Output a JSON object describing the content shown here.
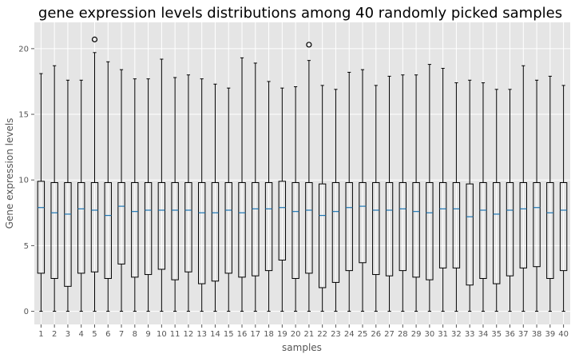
{
  "chart_data": {
    "type": "boxplot",
    "title": "gene expression levels distributions among 40 randomly picked samples",
    "xlabel": "samples",
    "ylabel": "Gene expression levels",
    "ylim": [
      -1,
      22
    ],
    "yticks": [
      0,
      5,
      10,
      15,
      20
    ],
    "grid": true,
    "colors": {
      "background": "#e5e5e5",
      "grid": "#ffffff",
      "box": "#000000",
      "median": "#1f77b4",
      "tick_text": "#555555"
    },
    "categories": [
      "1",
      "2",
      "3",
      "4",
      "5",
      "6",
      "7",
      "8",
      "9",
      "10",
      "11",
      "12",
      "13",
      "14",
      "15",
      "16",
      "17",
      "18",
      "19",
      "20",
      "21",
      "22",
      "23",
      "24",
      "25",
      "26",
      "27",
      "28",
      "29",
      "30",
      "31",
      "32",
      "33",
      "34",
      "35",
      "36",
      "37",
      "38",
      "39",
      "40"
    ],
    "boxes": [
      {
        "min": 0,
        "q1": 2.9,
        "median": 7.9,
        "q3": 9.9,
        "max": 18.1,
        "outliers": []
      },
      {
        "min": 0,
        "q1": 2.5,
        "median": 7.5,
        "q3": 9.8,
        "max": 18.7,
        "outliers": []
      },
      {
        "min": 0,
        "q1": 1.9,
        "median": 7.4,
        "q3": 9.8,
        "max": 17.6,
        "outliers": []
      },
      {
        "min": 0,
        "q1": 2.9,
        "median": 7.8,
        "q3": 9.8,
        "max": 17.6,
        "outliers": []
      },
      {
        "min": 0,
        "q1": 3.0,
        "median": 7.7,
        "q3": 9.8,
        "max": 19.7,
        "outliers": [
          20.7
        ]
      },
      {
        "min": 0,
        "q1": 2.5,
        "median": 7.3,
        "q3": 9.8,
        "max": 19.0,
        "outliers": []
      },
      {
        "min": 0,
        "q1": 3.6,
        "median": 8.0,
        "q3": 9.8,
        "max": 18.4,
        "outliers": []
      },
      {
        "min": 0,
        "q1": 2.6,
        "median": 7.6,
        "q3": 9.8,
        "max": 17.7,
        "outliers": []
      },
      {
        "min": 0,
        "q1": 2.8,
        "median": 7.7,
        "q3": 9.8,
        "max": 17.7,
        "outliers": []
      },
      {
        "min": 0,
        "q1": 3.2,
        "median": 7.7,
        "q3": 9.8,
        "max": 19.2,
        "outliers": []
      },
      {
        "min": 0,
        "q1": 2.4,
        "median": 7.7,
        "q3": 9.8,
        "max": 17.8,
        "outliers": []
      },
      {
        "min": 0,
        "q1": 3.0,
        "median": 7.7,
        "q3": 9.8,
        "max": 18.0,
        "outliers": []
      },
      {
        "min": 0,
        "q1": 2.1,
        "median": 7.5,
        "q3": 9.8,
        "max": 17.7,
        "outliers": []
      },
      {
        "min": 0,
        "q1": 2.3,
        "median": 7.5,
        "q3": 9.8,
        "max": 17.3,
        "outliers": []
      },
      {
        "min": 0,
        "q1": 2.9,
        "median": 7.7,
        "q3": 9.8,
        "max": 17.0,
        "outliers": []
      },
      {
        "min": 0,
        "q1": 2.6,
        "median": 7.5,
        "q3": 9.8,
        "max": 19.3,
        "outliers": []
      },
      {
        "min": 0,
        "q1": 2.7,
        "median": 7.8,
        "q3": 9.8,
        "max": 18.9,
        "outliers": []
      },
      {
        "min": 0,
        "q1": 3.1,
        "median": 7.8,
        "q3": 9.8,
        "max": 17.5,
        "outliers": []
      },
      {
        "min": 0,
        "q1": 3.9,
        "median": 7.9,
        "q3": 9.9,
        "max": 17.0,
        "outliers": []
      },
      {
        "min": 0,
        "q1": 2.5,
        "median": 7.6,
        "q3": 9.8,
        "max": 17.1,
        "outliers": []
      },
      {
        "min": 0,
        "q1": 2.9,
        "median": 7.7,
        "q3": 9.8,
        "max": 19.1,
        "outliers": [
          20.3
        ]
      },
      {
        "min": 0,
        "q1": 1.8,
        "median": 7.3,
        "q3": 9.7,
        "max": 17.2,
        "outliers": []
      },
      {
        "min": 0,
        "q1": 2.2,
        "median": 7.6,
        "q3": 9.8,
        "max": 16.9,
        "outliers": []
      },
      {
        "min": 0,
        "q1": 3.1,
        "median": 7.9,
        "q3": 9.8,
        "max": 18.2,
        "outliers": []
      },
      {
        "min": 0,
        "q1": 3.7,
        "median": 8.0,
        "q3": 9.8,
        "max": 18.4,
        "outliers": []
      },
      {
        "min": 0,
        "q1": 2.8,
        "median": 7.7,
        "q3": 9.8,
        "max": 17.2,
        "outliers": []
      },
      {
        "min": 0,
        "q1": 2.7,
        "median": 7.7,
        "q3": 9.8,
        "max": 17.9,
        "outliers": []
      },
      {
        "min": 0,
        "q1": 3.1,
        "median": 7.8,
        "q3": 9.8,
        "max": 18.0,
        "outliers": []
      },
      {
        "min": 0,
        "q1": 2.6,
        "median": 7.6,
        "q3": 9.8,
        "max": 18.0,
        "outliers": []
      },
      {
        "min": 0,
        "q1": 2.4,
        "median": 7.5,
        "q3": 9.8,
        "max": 18.8,
        "outliers": []
      },
      {
        "min": 0,
        "q1": 3.3,
        "median": 7.8,
        "q3": 9.8,
        "max": 18.5,
        "outliers": []
      },
      {
        "min": 0,
        "q1": 3.3,
        "median": 7.8,
        "q3": 9.8,
        "max": 17.4,
        "outliers": []
      },
      {
        "min": 0,
        "q1": 2.0,
        "median": 7.2,
        "q3": 9.7,
        "max": 17.6,
        "outliers": []
      },
      {
        "min": 0,
        "q1": 2.5,
        "median": 7.7,
        "q3": 9.8,
        "max": 17.4,
        "outliers": []
      },
      {
        "min": 0,
        "q1": 2.1,
        "median": 7.4,
        "q3": 9.8,
        "max": 16.9,
        "outliers": []
      },
      {
        "min": 0,
        "q1": 2.7,
        "median": 7.7,
        "q3": 9.8,
        "max": 16.9,
        "outliers": []
      },
      {
        "min": 0,
        "q1": 3.3,
        "median": 7.8,
        "q3": 9.8,
        "max": 18.7,
        "outliers": []
      },
      {
        "min": 0,
        "q1": 3.4,
        "median": 7.9,
        "q3": 9.8,
        "max": 17.6,
        "outliers": []
      },
      {
        "min": 0,
        "q1": 2.5,
        "median": 7.5,
        "q3": 9.8,
        "max": 17.9,
        "outliers": []
      },
      {
        "min": 0,
        "q1": 3.1,
        "median": 7.7,
        "q3": 9.8,
        "max": 17.2,
        "outliers": []
      }
    ]
  }
}
